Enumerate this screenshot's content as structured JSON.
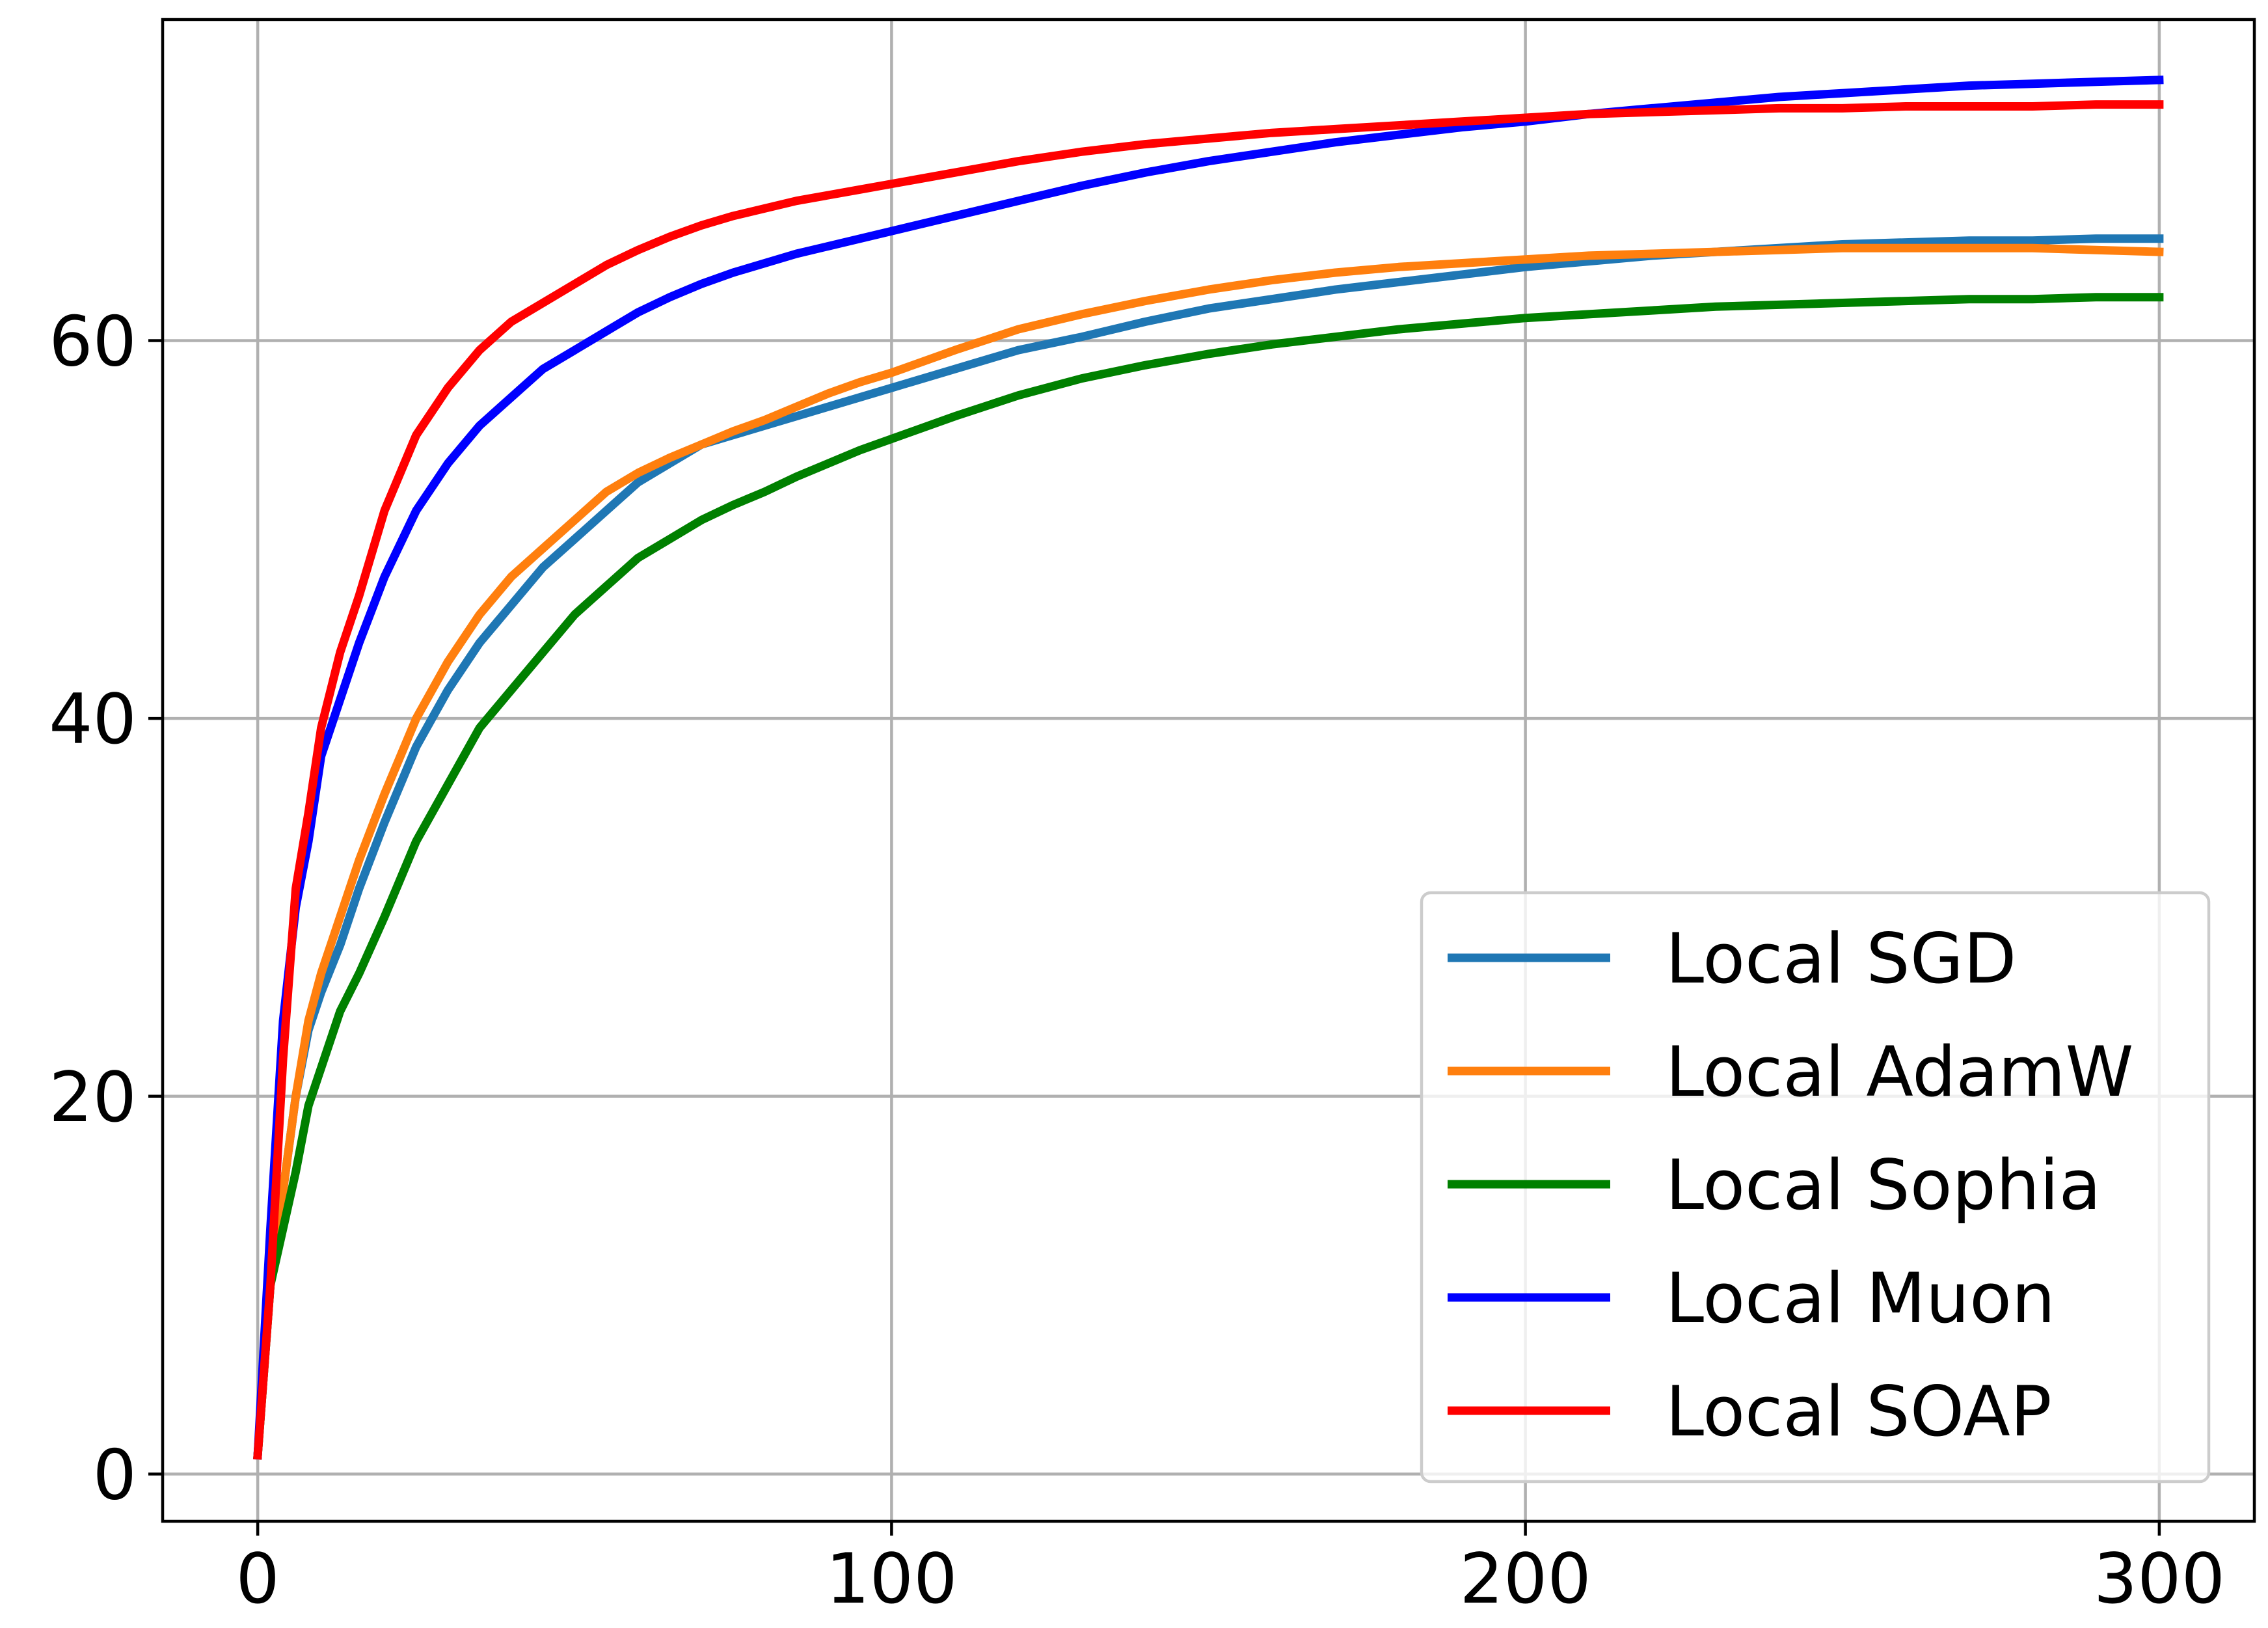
{
  "chart_data": {
    "type": "line",
    "title": "",
    "xlabel": "",
    "ylabel": "",
    "xlim": [
      -15,
      315
    ],
    "ylim": [
      -2.5,
      77
    ],
    "x_ticks": [
      0,
      100,
      200,
      300
    ],
    "y_ticks": [
      0,
      20,
      40,
      60
    ],
    "grid": true,
    "legend_position": "lower-right",
    "series": [
      {
        "name": "Local SGD",
        "color": "#1f77b4",
        "x": [
          0,
          2,
          4,
          6,
          8,
          10,
          13,
          16,
          20,
          25,
          30,
          35,
          40,
          45,
          50,
          55,
          60,
          65,
          70,
          75,
          80,
          85,
          90,
          95,
          100,
          110,
          120,
          130,
          140,
          150,
          160,
          170,
          180,
          190,
          200,
          210,
          220,
          230,
          240,
          250,
          260,
          270,
          280,
          290,
          300
        ],
        "y": [
          1,
          10,
          15,
          20,
          23.5,
          25.5,
          28,
          31,
          34.5,
          38.5,
          41.5,
          44,
          46,
          48,
          49.5,
          51,
          52.5,
          53.5,
          54.5,
          55,
          55.5,
          56,
          56.5,
          57,
          57.5,
          58.5,
          59.5,
          60.2,
          61,
          61.7,
          62.2,
          62.7,
          63.1,
          63.5,
          63.9,
          64.2,
          64.5,
          64.7,
          64.9,
          65.1,
          65.2,
          65.3,
          65.3,
          65.4,
          65.4
        ]
      },
      {
        "name": "Local AdamW",
        "color": "#ff7f0e",
        "x": [
          0,
          2,
          4,
          6,
          8,
          10,
          13,
          16,
          20,
          25,
          30,
          35,
          40,
          45,
          50,
          55,
          60,
          65,
          70,
          75,
          80,
          85,
          90,
          95,
          100,
          110,
          120,
          130,
          140,
          150,
          160,
          170,
          180,
          190,
          200,
          210,
          220,
          230,
          240,
          250,
          260,
          270,
          280,
          290,
          300
        ],
        "y": [
          1,
          10,
          15,
          20,
          24,
          26.5,
          29.5,
          32.5,
          36,
          40,
          43,
          45.5,
          47.5,
          49,
          50.5,
          52,
          53,
          53.8,
          54.5,
          55.2,
          55.8,
          56.5,
          57.2,
          57.8,
          58.3,
          59.5,
          60.6,
          61.4,
          62.1,
          62.7,
          63.2,
          63.6,
          63.9,
          64.1,
          64.3,
          64.5,
          64.6,
          64.7,
          64.8,
          64.9,
          64.9,
          64.9,
          64.9,
          64.8,
          64.7
        ]
      },
      {
        "name": "Local Sophia",
        "color": "#008000",
        "x": [
          0,
          2,
          4,
          6,
          8,
          10,
          13,
          16,
          20,
          25,
          30,
          35,
          40,
          45,
          50,
          55,
          60,
          65,
          70,
          75,
          80,
          85,
          90,
          95,
          100,
          110,
          120,
          130,
          140,
          150,
          160,
          170,
          180,
          190,
          200,
          210,
          220,
          230,
          240,
          250,
          260,
          270,
          280,
          290,
          300
        ],
        "y": [
          1,
          10,
          13,
          16,
          19.5,
          21.5,
          24.5,
          26.5,
          29.5,
          33.5,
          36.5,
          39.5,
          41.5,
          43.5,
          45.5,
          47,
          48.5,
          49.5,
          50.5,
          51.3,
          52,
          52.8,
          53.5,
          54.2,
          54.8,
          56,
          57.1,
          58,
          58.7,
          59.3,
          59.8,
          60.2,
          60.6,
          60.9,
          61.2,
          61.4,
          61.6,
          61.8,
          61.9,
          62,
          62.1,
          62.2,
          62.2,
          62.3,
          62.3
        ]
      },
      {
        "name": "Local Muon",
        "color": "#0000ff",
        "x": [
          0,
          2,
          4,
          6,
          8,
          10,
          13,
          16,
          20,
          25,
          30,
          35,
          40,
          45,
          50,
          55,
          60,
          65,
          70,
          75,
          80,
          85,
          90,
          95,
          100,
          110,
          120,
          130,
          140,
          150,
          160,
          170,
          180,
          190,
          200,
          210,
          220,
          230,
          240,
          250,
          260,
          270,
          280,
          290,
          300
        ],
        "y": [
          1,
          13,
          24,
          30,
          33.5,
          38,
          41,
          44,
          47.5,
          51,
          53.5,
          55.5,
          57,
          58.5,
          59.5,
          60.5,
          61.5,
          62.3,
          63,
          63.6,
          64.1,
          64.6,
          65,
          65.4,
          65.8,
          66.6,
          67.4,
          68.2,
          68.9,
          69.5,
          70,
          70.5,
          70.9,
          71.3,
          71.6,
          72,
          72.3,
          72.6,
          72.9,
          73.1,
          73.3,
          73.5,
          73.6,
          73.7,
          73.8
        ]
      },
      {
        "name": "Local SOAP",
        "color": "#ff0000",
        "x": [
          0,
          2,
          4,
          6,
          8,
          10,
          13,
          16,
          20,
          25,
          30,
          35,
          40,
          45,
          50,
          55,
          60,
          65,
          70,
          75,
          80,
          85,
          90,
          95,
          100,
          110,
          120,
          130,
          140,
          150,
          160,
          170,
          180,
          190,
          200,
          210,
          220,
          230,
          240,
          250,
          260,
          270,
          280,
          290,
          300
        ],
        "y": [
          1,
          10,
          22,
          31,
          35,
          39.5,
          43.5,
          46.5,
          51,
          55,
          57.5,
          59.5,
          61,
          62,
          63,
          64,
          64.8,
          65.5,
          66.1,
          66.6,
          67,
          67.4,
          67.7,
          68,
          68.3,
          68.9,
          69.5,
          70,
          70.4,
          70.7,
          71,
          71.2,
          71.4,
          71.6,
          71.8,
          72,
          72.1,
          72.2,
          72.3,
          72.3,
          72.4,
          72.4,
          72.4,
          72.5,
          72.5
        ]
      }
    ]
  }
}
